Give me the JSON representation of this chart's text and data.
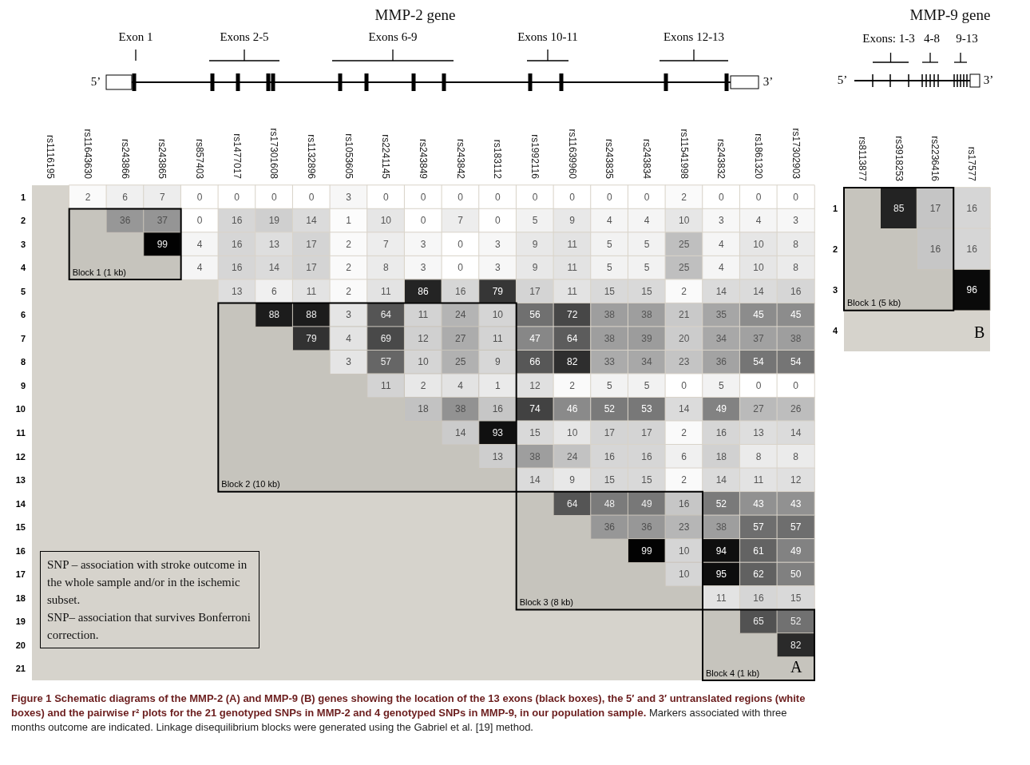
{
  "chart_data": [
    {
      "type": "heatmap",
      "title": "MMP-2 gene",
      "data_labels": true,
      "categories": [
        "rs1116195",
        "rs11643630",
        "rs243866",
        "rs243865",
        "rs857403",
        "rs1477017",
        "rs17301608",
        "rs1132896",
        "rs1053605",
        "rs2241145",
        "rs243849",
        "rs243842",
        "rs183112",
        "rs1992116",
        "rs11639960",
        "rs243835",
        "rs243834",
        "rs11541998",
        "rs243832",
        "rs1861320",
        "rs17302903"
      ],
      "y_categories": [
        "1",
        "2",
        "3",
        "4",
        "5",
        "6",
        "7",
        "8",
        "9",
        "10",
        "11",
        "12",
        "13",
        "14",
        "15",
        "16",
        "17",
        "18",
        "19",
        "20",
        "21"
      ],
      "cells": [
        [
          null,
          2,
          6,
          7,
          0,
          0,
          0,
          0,
          3,
          0,
          0,
          0,
          0,
          0,
          0,
          0,
          0,
          2,
          0,
          0,
          0
        ],
        [
          null,
          null,
          36,
          37,
          0,
          16,
          19,
          14,
          1,
          10,
          0,
          7,
          0,
          5,
          9,
          4,
          4,
          10,
          3,
          4,
          3
        ],
        [
          null,
          null,
          null,
          99,
          4,
          16,
          13,
          17,
          2,
          7,
          3,
          0,
          3,
          9,
          11,
          5,
          5,
          25,
          4,
          10,
          8
        ],
        [
          null,
          null,
          null,
          null,
          4,
          16,
          14,
          17,
          2,
          8,
          3,
          0,
          3,
          9,
          11,
          5,
          5,
          25,
          4,
          10,
          8
        ],
        [
          null,
          null,
          null,
          null,
          null,
          13,
          6,
          11,
          2,
          11,
          86,
          16,
          79,
          17,
          11,
          15,
          15,
          2,
          14,
          14,
          16
        ],
        [
          null,
          null,
          null,
          null,
          null,
          null,
          88,
          88,
          3,
          64,
          11,
          24,
          10,
          56,
          72,
          38,
          38,
          21,
          35,
          45,
          45
        ],
        [
          null,
          null,
          null,
          null,
          null,
          null,
          null,
          79,
          4,
          69,
          12,
          27,
          11,
          47,
          64,
          38,
          39,
          20,
          34,
          37,
          38
        ],
        [
          null,
          null,
          null,
          null,
          null,
          null,
          null,
          null,
          3,
          57,
          10,
          25,
          9,
          66,
          82,
          33,
          34,
          23,
          36,
          54,
          54
        ],
        [
          null,
          null,
          null,
          null,
          null,
          null,
          null,
          null,
          null,
          11,
          2,
          4,
          1,
          12,
          2,
          5,
          5,
          0,
          5,
          0,
          0
        ],
        [
          null,
          null,
          null,
          null,
          null,
          null,
          null,
          null,
          null,
          null,
          18,
          38,
          16,
          74,
          46,
          52,
          53,
          14,
          49,
          27,
          26
        ],
        [
          null,
          null,
          null,
          null,
          null,
          null,
          null,
          null,
          null,
          null,
          null,
          14,
          93,
          15,
          10,
          17,
          17,
          2,
          16,
          13,
          14
        ],
        [
          null,
          null,
          null,
          null,
          null,
          null,
          null,
          null,
          null,
          null,
          null,
          null,
          13,
          38,
          24,
          16,
          16,
          6,
          18,
          8,
          8
        ],
        [
          null,
          null,
          null,
          null,
          null,
          null,
          null,
          null,
          null,
          null,
          null,
          null,
          null,
          14,
          9,
          15,
          15,
          2,
          14,
          11,
          12
        ],
        [
          null,
          null,
          null,
          null,
          null,
          null,
          null,
          null,
          null,
          null,
          null,
          null,
          null,
          null,
          64,
          48,
          49,
          16,
          52,
          43,
          43
        ],
        [
          null,
          null,
          null,
          null,
          null,
          null,
          null,
          null,
          null,
          null,
          null,
          null,
          null,
          null,
          null,
          36,
          36,
          23,
          38,
          57,
          57
        ],
        [
          null,
          null,
          null,
          null,
          null,
          null,
          null,
          null,
          null,
          null,
          null,
          null,
          null,
          null,
          null,
          null,
          99,
          10,
          94,
          61,
          49
        ],
        [
          null,
          null,
          null,
          null,
          null,
          null,
          null,
          null,
          null,
          null,
          null,
          null,
          null,
          null,
          null,
          null,
          null,
          10,
          95,
          62,
          50
        ],
        [
          null,
          null,
          null,
          null,
          null,
          null,
          null,
          null,
          null,
          null,
          null,
          null,
          null,
          null,
          null,
          null,
          null,
          null,
          11,
          16,
          15
        ],
        [
          null,
          null,
          null,
          null,
          null,
          null,
          null,
          null,
          null,
          null,
          null,
          null,
          null,
          null,
          null,
          null,
          null,
          null,
          null,
          65,
          52
        ],
        [
          null,
          null,
          null,
          null,
          null,
          null,
          null,
          null,
          null,
          null,
          null,
          null,
          null,
          null,
          null,
          null,
          null,
          null,
          null,
          null,
          82
        ],
        [
          null,
          null,
          null,
          null,
          null,
          null,
          null,
          null,
          null,
          null,
          null,
          null,
          null,
          null,
          null,
          null,
          null,
          null,
          null,
          null,
          null
        ]
      ],
      "bands": [
        {
          "axis": "x",
          "from": "rs11643630",
          "to": "rs243865",
          "label": "Block 1 (1 kb)",
          "color": "#000000"
        },
        {
          "axis": "x",
          "from": "rs1477017",
          "to": "rs183112",
          "label": "Block 2 (10 kb)",
          "color": "#000000"
        },
        {
          "axis": "x",
          "from": "rs1992116",
          "to": "rs11541998",
          "label": "Block 3 (8 kb)",
          "color": "#000000"
        },
        {
          "axis": "x",
          "from": "rs243832",
          "to": "rs17302903",
          "label": "Block 4 (1 kb)",
          "color": "#000000"
        }
      ],
      "annotations": [
        "Exon 1",
        "Exons 2-5",
        "Exons 6-9",
        "Exons 10-11",
        "Exons 12-13",
        "5’",
        "3’",
        "SNP – association with stroke outcome in the whole sample and/or in the ischemic subset.",
        "SNP– association that survives Bonferroni correction.",
        "A",
        "Figure 1 Schematic diagrams of the MMP-2 (A) and MMP-9 (B) genes showing the location of the 13 exons (black boxes), the 5′ and 3′ untranslated regions (white boxes) and the pairwise r² plots for the 21 genotyped SNPs in MMP-2 and 4 genotyped SNPs in MMP-9, in our population sample.",
        "Markers associated with three months outcome are indicated. Linkage disequilibrium blocks were generated using the Gabriel et al. [19] method."
      ]
    },
    {
      "type": "heatmap",
      "title": "MMP-9 gene",
      "data_labels": true,
      "categories": [
        "rs8113877",
        "rs3918253",
        "rs2236416",
        "rs17577"
      ],
      "y_categories": [
        "1",
        "2",
        "3",
        "4"
      ],
      "cells": [
        [
          null,
          85,
          17,
          16
        ],
        [
          null,
          null,
          16,
          16
        ],
        [
          null,
          null,
          null,
          96
        ],
        [
          null,
          null,
          null,
          null
        ]
      ],
      "bands": [
        {
          "axis": "x",
          "from": "rs8113877",
          "to": "rs2236416",
          "label": "Block 1 (5 kb)",
          "color": "#000000"
        }
      ],
      "annotations": [
        "Exons: 1-3",
        "4-8",
        "9-13",
        "5’",
        "3’",
        "B"
      ]
    }
  ]
}
